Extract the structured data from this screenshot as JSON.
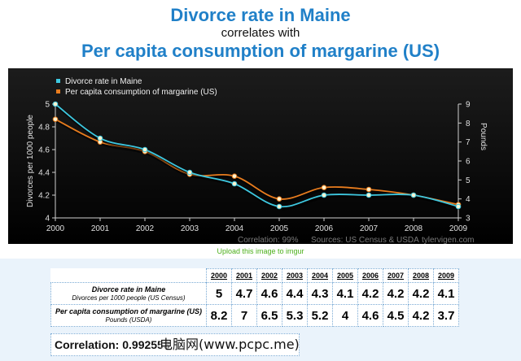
{
  "header": {
    "title1": "Divorce rate in Maine",
    "title2": "correlates with",
    "title3": "Per capita consumption of margarine (US)"
  },
  "chart_data": {
    "type": "line",
    "x": [
      2000,
      2001,
      2002,
      2003,
      2004,
      2005,
      2006,
      2007,
      2008,
      2009
    ],
    "series": [
      {
        "name": "Divorce rate in Maine",
        "axis": "left",
        "color": "#3ec8e0",
        "values": [
          5,
          4.7,
          4.6,
          4.4,
          4.3,
          4.1,
          4.2,
          4.2,
          4.2,
          4.1
        ]
      },
      {
        "name": "Per capita consumption of margarine (US)",
        "axis": "right",
        "color": "#e87c1e",
        "values": [
          8.2,
          7,
          6.5,
          5.3,
          5.2,
          4,
          4.6,
          4.5,
          4.2,
          3.7
        ]
      }
    ],
    "xlim": [
      2000,
      2009
    ],
    "ylim_left": [
      4,
      5
    ],
    "ylim_right": [
      3,
      9
    ],
    "left_ticks": [
      "4",
      "4.2",
      "4.4",
      "4.6",
      "4.8",
      "5"
    ],
    "right_ticks": [
      "3",
      "4",
      "5",
      "6",
      "7",
      "8",
      "9"
    ],
    "ylabel_left": "Divorces per 1000 people",
    "ylabel_right": "Pounds",
    "legend_position": "top-left",
    "footer_correlation": "Correlation: 99%",
    "footer_sources": "Sources: US Census & USDA",
    "footer_site": "tylervigen.com"
  },
  "upload_link": "Upload this image to imgur",
  "table": {
    "years": [
      "2000",
      "2001",
      "2002",
      "2003",
      "2004",
      "2005",
      "2006",
      "2007",
      "2008",
      "2009"
    ],
    "rows": [
      {
        "label": "Divorce rate in Maine",
        "sublabel": "Divorces per 1000 people (US Census)",
        "values": [
          "5",
          "4.7",
          "4.6",
          "4.4",
          "4.3",
          "4.1",
          "4.2",
          "4.2",
          "4.2",
          "4.1"
        ]
      },
      {
        "label": "Per capita consumption of margarine (US)",
        "sublabel": "Pounds (USDA)",
        "values": [
          "8.2",
          "7",
          "6.5",
          "5.3",
          "5.2",
          "4",
          "4.6",
          "4.5",
          "4.2",
          "3.7"
        ]
      }
    ]
  },
  "correlation_text": "Correlation: 0.992558",
  "watermark": "电脑网(www.pcpc.me)",
  "colors": {
    "title": "#2080c8",
    "chart_bg": "#000000",
    "divorce": "#3ec8e0",
    "margarine": "#e87c1e",
    "link": "#4caf1a"
  }
}
